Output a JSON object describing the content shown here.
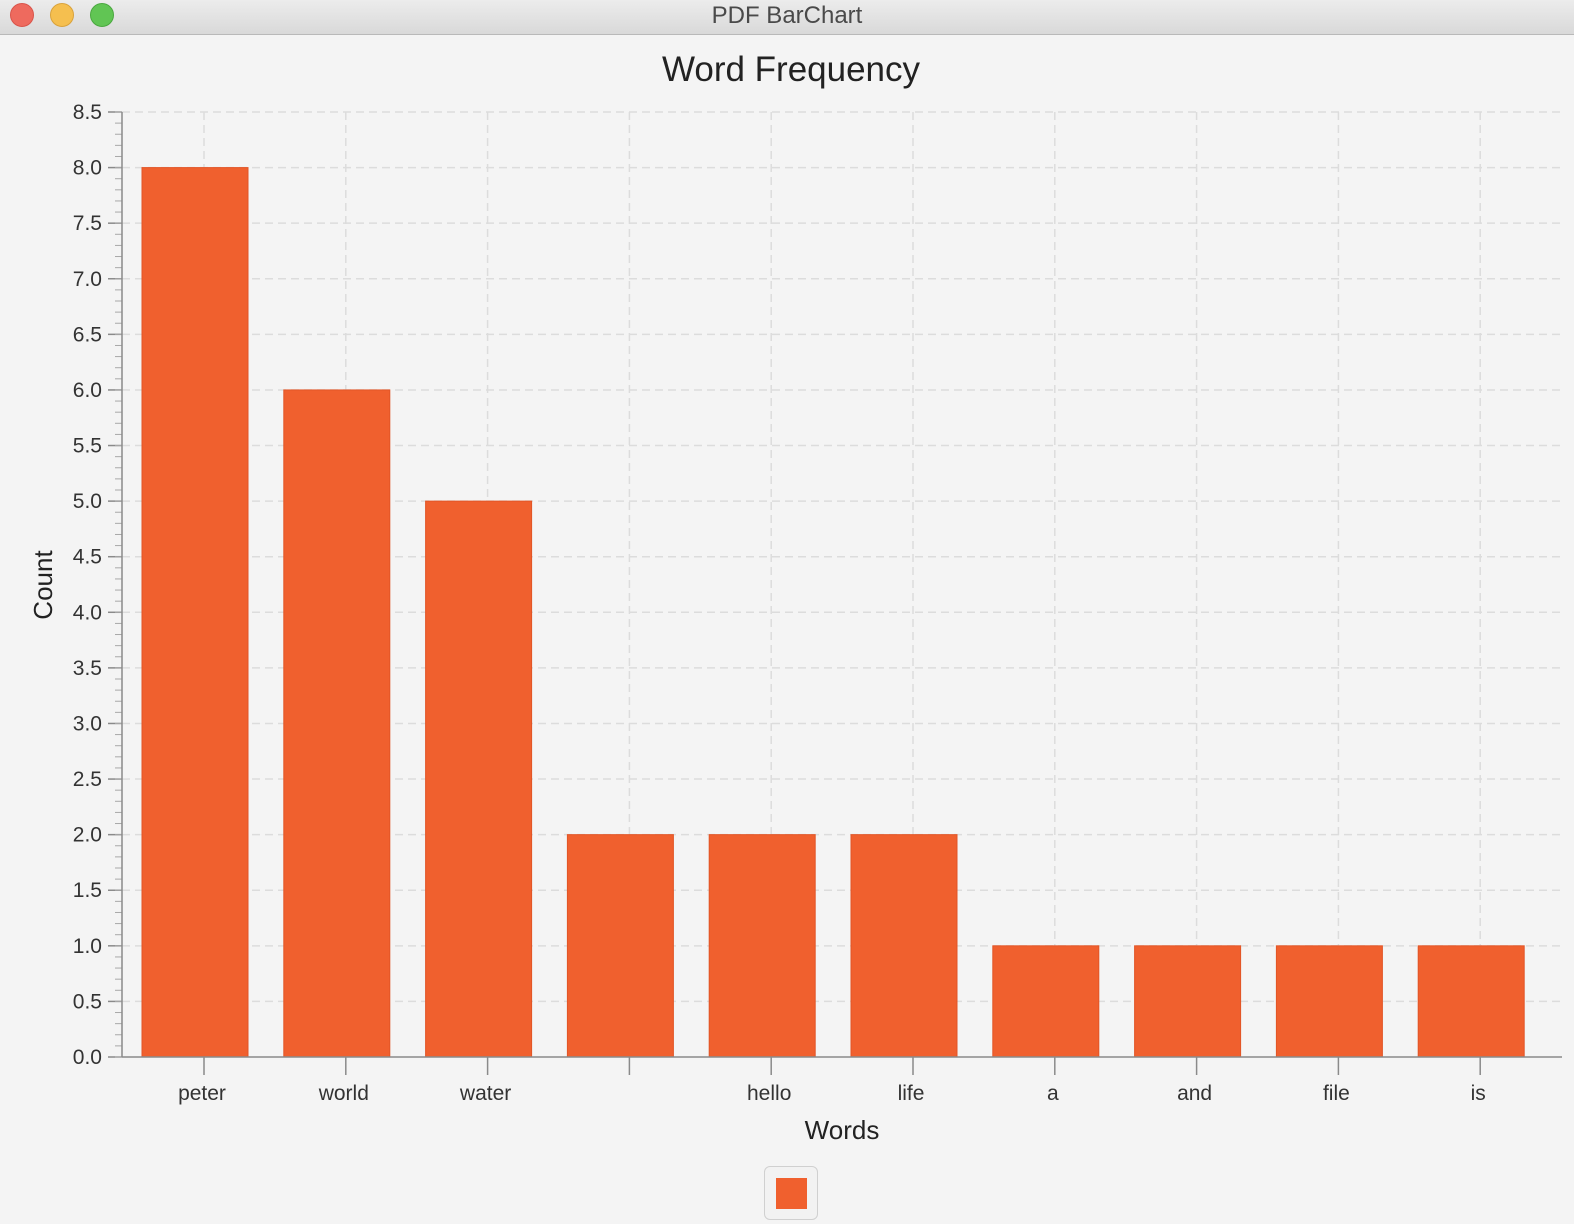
{
  "window": {
    "title": "PDF BarChart"
  },
  "chart_data": {
    "type": "bar",
    "title": "Word Frequency",
    "xlabel": "Words",
    "ylabel": "Count",
    "categories": [
      "peter",
      "world",
      "water",
      "",
      "hello",
      "life",
      "a",
      "and",
      "file",
      "is"
    ],
    "values": [
      8,
      6,
      5,
      2,
      2,
      2,
      1,
      1,
      1,
      1
    ],
    "ylim": [
      0,
      8.5
    ],
    "ytick_step": 0.5,
    "ytick_labels": [
      "0.0",
      "0.5",
      "1.0",
      "1.5",
      "2.0",
      "2.5",
      "3.0",
      "3.5",
      "4.0",
      "4.5",
      "5.0",
      "5.5",
      "6.0",
      "6.5",
      "7.0",
      "7.5",
      "8.0",
      "8.5"
    ],
    "grid": true,
    "legend": "bottom",
    "bar_color": "#f0602e"
  }
}
